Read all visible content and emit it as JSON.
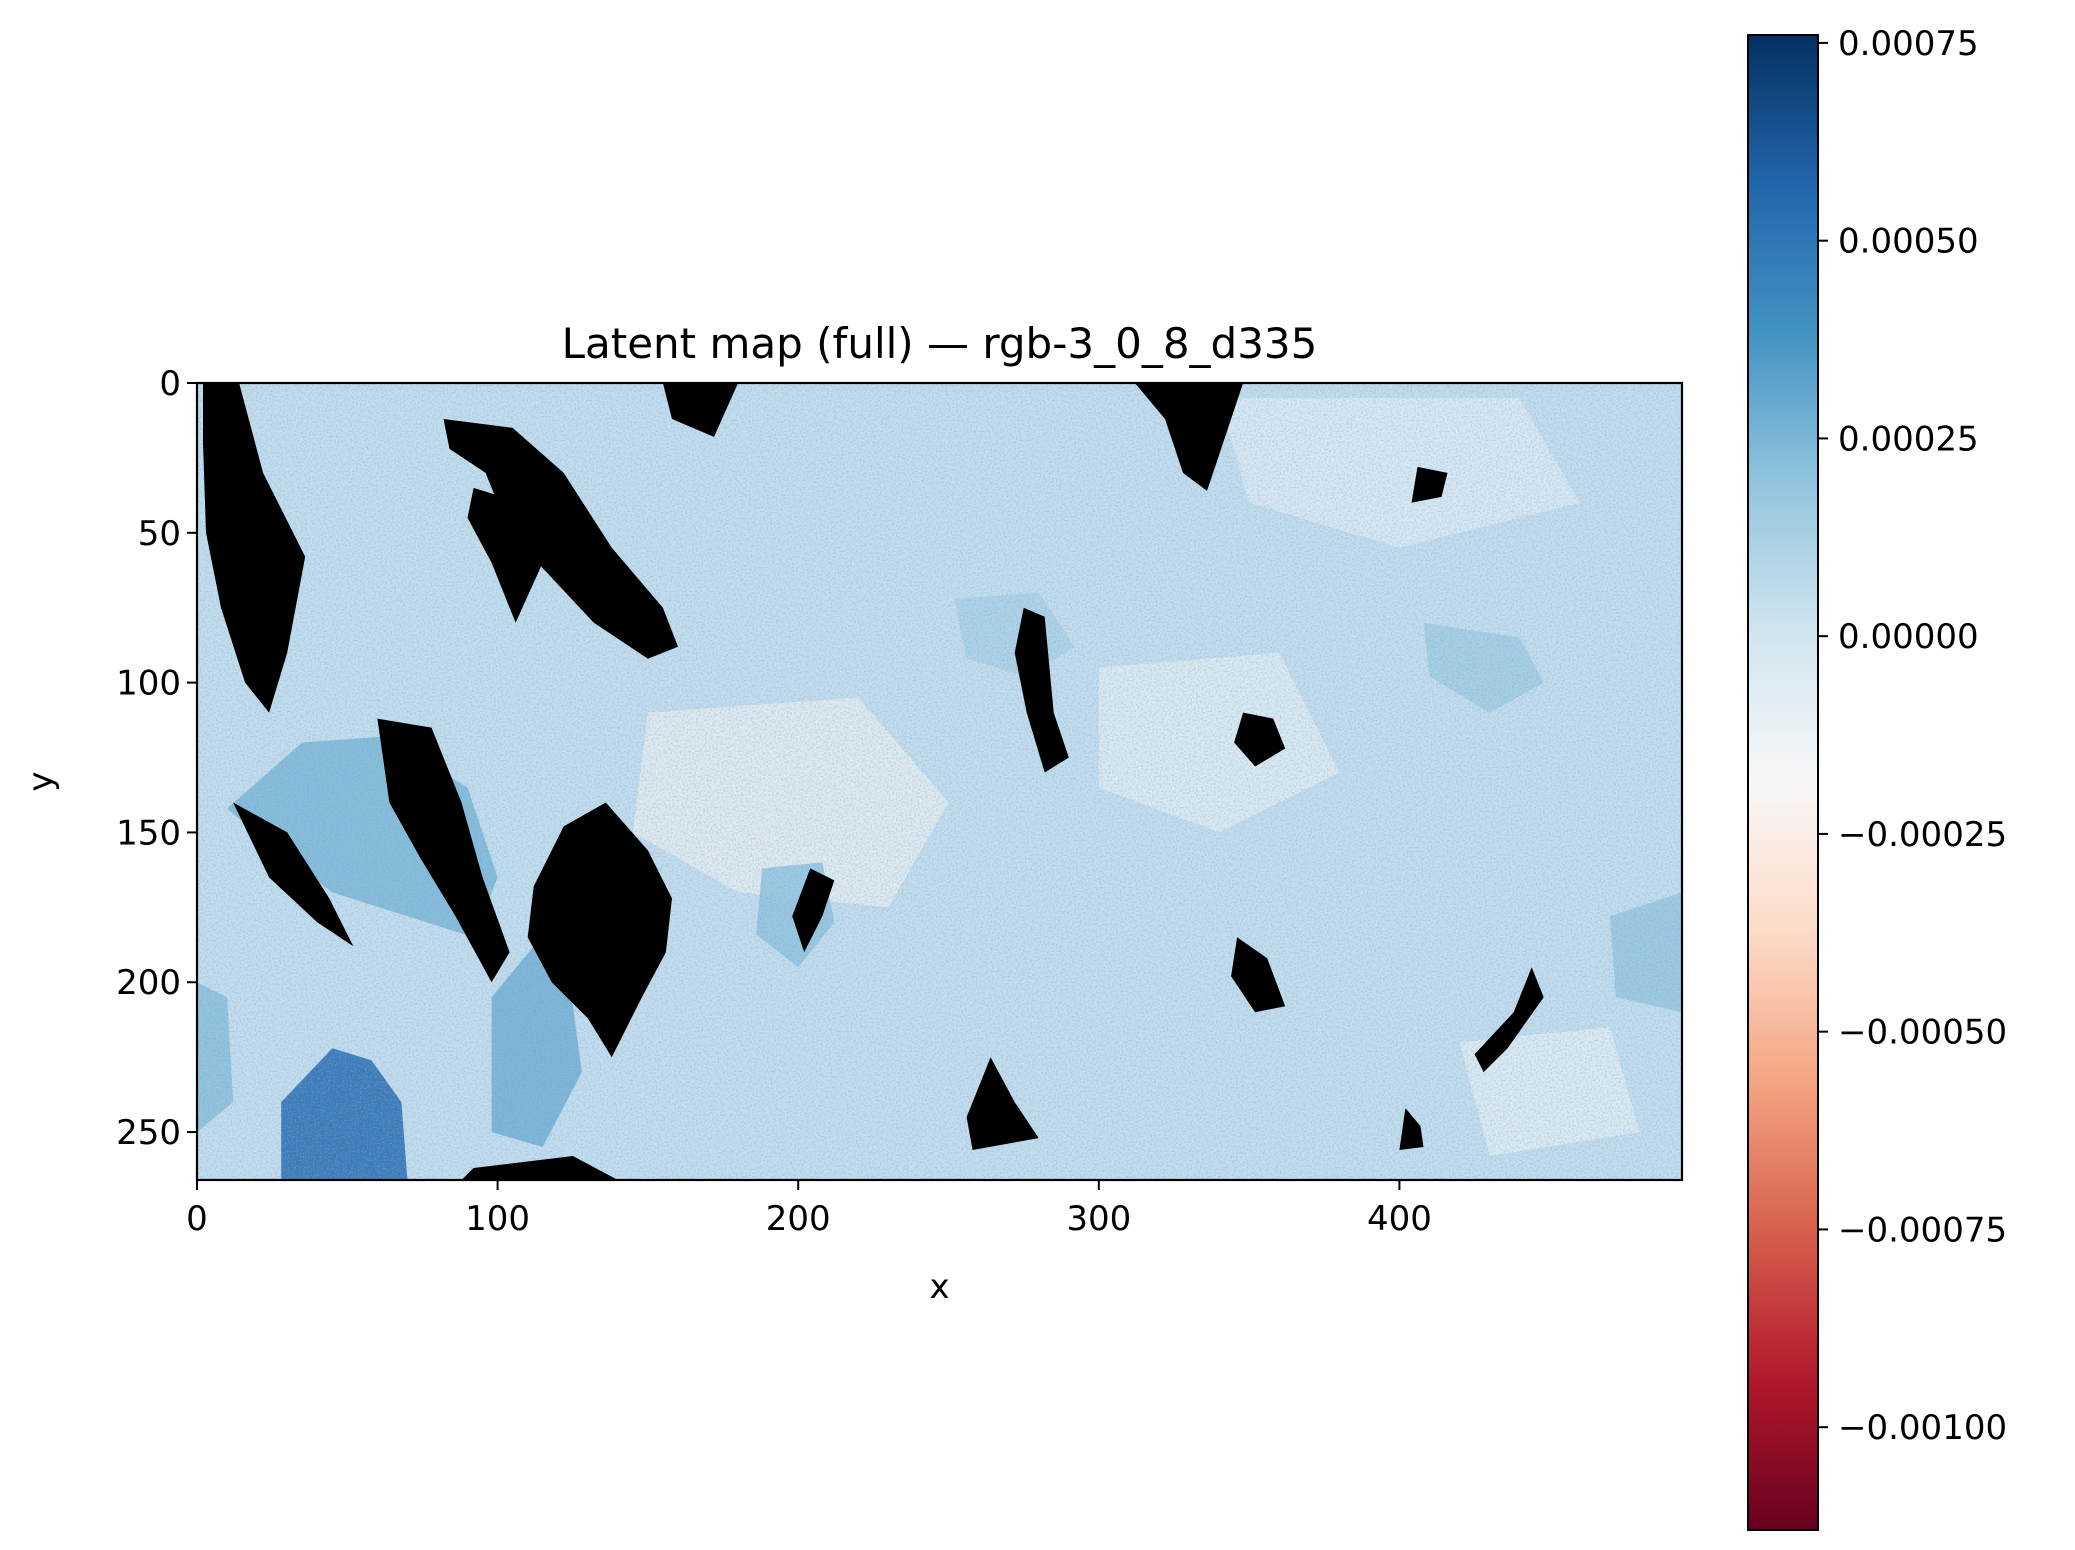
{
  "chart_data": {
    "type": "heatmap",
    "title": "Latent map (full) — rgb-3_0_8_d335",
    "xlabel": "x",
    "ylabel": "y",
    "xlim": [
      0,
      494
    ],
    "ylim": [
      0,
      266
    ],
    "y_inverted": true,
    "x_ticks": [
      {
        "value": 0,
        "label": "0"
      },
      {
        "value": 100,
        "label": "100"
      },
      {
        "value": 200,
        "label": "200"
      },
      {
        "value": 300,
        "label": "300"
      },
      {
        "value": 400,
        "label": "400"
      }
    ],
    "y_ticks": [
      {
        "value": 0,
        "label": "0"
      },
      {
        "value": 50,
        "label": "50"
      },
      {
        "value": 100,
        "label": "100"
      },
      {
        "value": 150,
        "label": "150"
      },
      {
        "value": 200,
        "label": "200"
      },
      {
        "value": 250,
        "label": "250"
      }
    ],
    "colormap": "RdBu",
    "masked_color": "#000000",
    "colorbar": {
      "vmin": -0.00113,
      "vmax": 0.00076,
      "ticks": [
        {
          "value": 0.00075,
          "label": "0.00075"
        },
        {
          "value": 0.0005,
          "label": "0.00050"
        },
        {
          "value": 0.00025,
          "label": "0.00025"
        },
        {
          "value": 0.0,
          "label": "0.00000"
        },
        {
          "value": -0.00025,
          "label": "−0.00025"
        },
        {
          "value": -0.0005,
          "label": "−0.00050"
        },
        {
          "value": -0.00075,
          "label": "−0.00075"
        },
        {
          "value": -0.001,
          "label": "−0.00100"
        }
      ],
      "stops": [
        "#67001f",
        "#b2182b",
        "#d6604d",
        "#f4a582",
        "#fddbc7",
        "#f7f7f7",
        "#d1e5f0",
        "#92c5de",
        "#4393c3",
        "#2166ac",
        "#053061"
      ]
    },
    "masked_regions": [
      {
        "name": "left-vertical-streak",
        "points": [
          [
            2,
            0
          ],
          [
            14,
            0
          ],
          [
            22,
            30
          ],
          [
            36,
            58
          ],
          [
            30,
            90
          ],
          [
            24,
            110
          ],
          [
            16,
            100
          ],
          [
            8,
            75
          ],
          [
            3,
            50
          ],
          [
            2,
            20
          ]
        ]
      },
      {
        "name": "top-diagonal-band",
        "points": [
          [
            82,
            12
          ],
          [
            105,
            15
          ],
          [
            122,
            30
          ],
          [
            138,
            55
          ],
          [
            155,
            75
          ],
          [
            160,
            88
          ],
          [
            150,
            92
          ],
          [
            132,
            80
          ],
          [
            118,
            65
          ],
          [
            104,
            50
          ],
          [
            96,
            30
          ],
          [
            84,
            22
          ]
        ]
      },
      {
        "name": "upper-loop",
        "points": [
          [
            92,
            35
          ],
          [
            108,
            40
          ],
          [
            115,
            60
          ],
          [
            106,
            80
          ],
          [
            98,
            60
          ],
          [
            90,
            45
          ]
        ]
      },
      {
        "name": "top-notch",
        "points": [
          [
            155,
            0
          ],
          [
            180,
            0
          ],
          [
            172,
            18
          ],
          [
            158,
            12
          ]
        ]
      },
      {
        "name": "center-left-blob",
        "points": [
          [
            122,
            148
          ],
          [
            136,
            140
          ],
          [
            150,
            156
          ],
          [
            158,
            172
          ],
          [
            156,
            190
          ],
          [
            148,
            205
          ],
          [
            138,
            225
          ],
          [
            130,
            212
          ],
          [
            118,
            200
          ],
          [
            110,
            185
          ],
          [
            112,
            168
          ]
        ]
      },
      {
        "name": "lower-left-ridge",
        "points": [
          [
            60,
            112
          ],
          [
            78,
            115
          ],
          [
            88,
            140
          ],
          [
            95,
            165
          ],
          [
            104,
            190
          ],
          [
            98,
            200
          ],
          [
            86,
            178
          ],
          [
            74,
            158
          ],
          [
            64,
            140
          ]
        ]
      },
      {
        "name": "bottom-left-arch",
        "points": [
          [
            92,
            262
          ],
          [
            125,
            258
          ],
          [
            140,
            266
          ],
          [
            88,
            266
          ]
        ]
      },
      {
        "name": "mid-vertical-spike",
        "points": [
          [
            275,
            75
          ],
          [
            282,
            78
          ],
          [
            285,
            110
          ],
          [
            290,
            125
          ],
          [
            282,
            130
          ],
          [
            276,
            110
          ],
          [
            272,
            90
          ]
        ]
      },
      {
        "name": "top-right-blob",
        "points": [
          [
            312,
            0
          ],
          [
            348,
            0
          ],
          [
            338,
            30
          ],
          [
            336,
            36
          ],
          [
            328,
            30
          ],
          [
            322,
            12
          ]
        ]
      },
      {
        "name": "small-oval",
        "points": [
          [
            406,
            28
          ],
          [
            416,
            30
          ],
          [
            414,
            38
          ],
          [
            404,
            40
          ]
        ]
      },
      {
        "name": "right-mid-blob",
        "points": [
          [
            348,
            110
          ],
          [
            358,
            112
          ],
          [
            362,
            122
          ],
          [
            352,
            128
          ],
          [
            345,
            120
          ]
        ]
      },
      {
        "name": "lower-mid-blob",
        "points": [
          [
            346,
            185
          ],
          [
            356,
            192
          ],
          [
            362,
            208
          ],
          [
            352,
            210
          ],
          [
            344,
            198
          ]
        ]
      },
      {
        "name": "bottom-triangle",
        "points": [
          [
            264,
            225
          ],
          [
            272,
            240
          ],
          [
            280,
            252
          ],
          [
            258,
            256
          ],
          [
            256,
            245
          ]
        ]
      },
      {
        "name": "right-curve",
        "points": [
          [
            444,
            195
          ],
          [
            448,
            205
          ],
          [
            436,
            222
          ],
          [
            428,
            230
          ],
          [
            425,
            224
          ],
          [
            438,
            210
          ]
        ]
      },
      {
        "name": "small-bottom-mark",
        "points": [
          [
            402,
            242
          ],
          [
            407,
            248
          ],
          [
            408,
            255
          ],
          [
            400,
            256
          ]
        ]
      },
      {
        "name": "left-wedge",
        "points": [
          [
            12,
            140
          ],
          [
            30,
            150
          ],
          [
            44,
            172
          ],
          [
            52,
            188
          ],
          [
            40,
            180
          ],
          [
            24,
            165
          ]
        ]
      },
      {
        "name": "mid-dark-streak",
        "points": [
          [
            204,
            162
          ],
          [
            212,
            166
          ],
          [
            208,
            178
          ],
          [
            202,
            190
          ],
          [
            198,
            178
          ]
        ]
      }
    ],
    "blue_regions": [
      {
        "name": "bottom-left-blue",
        "intensity": 0.00055,
        "points": [
          [
            28,
            240
          ],
          [
            45,
            222
          ],
          [
            58,
            226
          ],
          [
            68,
            240
          ],
          [
            70,
            266
          ],
          [
            28,
            266
          ]
        ]
      },
      {
        "name": "lower-left-field",
        "intensity": 0.00025,
        "points": [
          [
            10,
            142
          ],
          [
            35,
            120
          ],
          [
            62,
            118
          ],
          [
            90,
            135
          ],
          [
            100,
            165
          ],
          [
            92,
            185
          ],
          [
            70,
            178
          ],
          [
            45,
            170
          ],
          [
            25,
            155
          ]
        ]
      },
      {
        "name": "lower-center-field",
        "intensity": 0.00028,
        "points": [
          [
            98,
            205
          ],
          [
            112,
            188
          ],
          [
            124,
            200
          ],
          [
            128,
            230
          ],
          [
            115,
            255
          ],
          [
            98,
            250
          ]
        ]
      },
      {
        "name": "center-patch",
        "intensity": 0.0002,
        "points": [
          [
            188,
            162
          ],
          [
            208,
            160
          ],
          [
            212,
            180
          ],
          [
            200,
            195
          ],
          [
            186,
            184
          ]
        ]
      },
      {
        "name": "right-patch",
        "intensity": 0.00015,
        "points": [
          [
            408,
            80
          ],
          [
            440,
            85
          ],
          [
            448,
            100
          ],
          [
            430,
            110
          ],
          [
            410,
            98
          ]
        ]
      },
      {
        "name": "mid-right-patch",
        "intensity": 0.00012,
        "points": [
          [
            252,
            72
          ],
          [
            280,
            70
          ],
          [
            292,
            88
          ],
          [
            276,
            98
          ],
          [
            256,
            92
          ]
        ]
      },
      {
        "name": "far-right-patch",
        "intensity": 0.00018,
        "points": [
          [
            470,
            178
          ],
          [
            494,
            170
          ],
          [
            494,
            210
          ],
          [
            472,
            205
          ]
        ]
      },
      {
        "name": "left-edge-patch",
        "intensity": 0.00022,
        "points": [
          [
            0,
            200
          ],
          [
            10,
            205
          ],
          [
            12,
            240
          ],
          [
            0,
            250
          ]
        ]
      }
    ],
    "pink_regions": [
      {
        "name": "center-pink",
        "intensity": -0.0002,
        "points": [
          [
            150,
            110
          ],
          [
            220,
            105
          ],
          [
            250,
            140
          ],
          [
            230,
            175
          ],
          [
            180,
            170
          ],
          [
            145,
            150
          ]
        ]
      },
      {
        "name": "right-pink",
        "intensity": -0.00015,
        "points": [
          [
            300,
            95
          ],
          [
            360,
            90
          ],
          [
            380,
            130
          ],
          [
            340,
            150
          ],
          [
            300,
            135
          ]
        ]
      },
      {
        "name": "top-pink",
        "intensity": -0.00012,
        "points": [
          [
            340,
            5
          ],
          [
            440,
            5
          ],
          [
            460,
            40
          ],
          [
            400,
            55
          ],
          [
            350,
            40
          ]
        ]
      },
      {
        "name": "bottom-pink",
        "intensity": -0.00016,
        "points": [
          [
            420,
            220
          ],
          [
            470,
            215
          ],
          [
            480,
            250
          ],
          [
            430,
            258
          ]
        ]
      }
    ]
  }
}
